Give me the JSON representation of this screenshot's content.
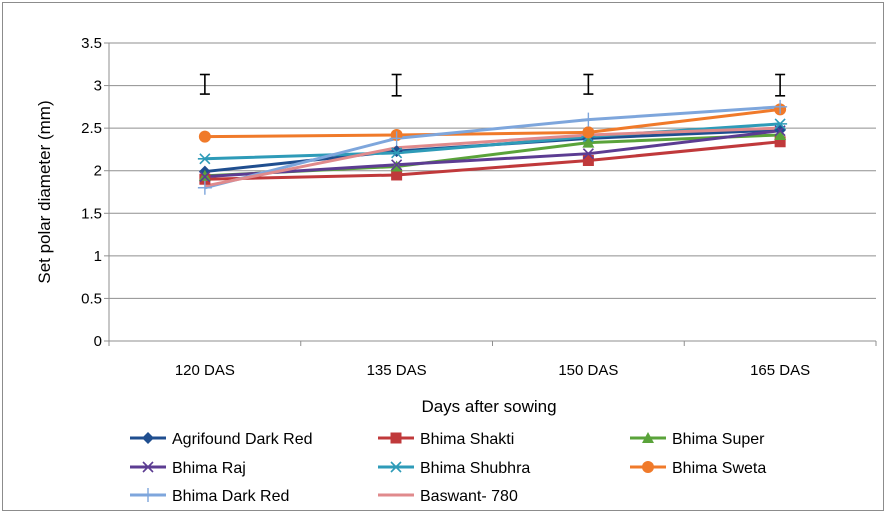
{
  "chart_data": {
    "type": "line",
    "title": "",
    "xlabel": "Days after sowing",
    "ylabel": "Set  polar diameter (mm)",
    "categories": [
      "120 DAS",
      "135 DAS",
      "150 DAS",
      "165 DAS"
    ],
    "ylim": [
      0,
      3.5
    ],
    "yticks": [
      "0",
      "0.5",
      "1",
      "1.5",
      "2",
      "2.5",
      "3",
      "3.5"
    ],
    "grid": true,
    "legend_position": "bottom",
    "series": [
      {
        "name": "Agrifound Dark Red",
        "values": [
          1.99,
          2.23,
          2.38,
          2.48
        ],
        "color": "#1f4e8f",
        "marker": "diamond"
      },
      {
        "name": "Bhima Shakti",
        "values": [
          1.9,
          1.95,
          2.12,
          2.34
        ],
        "color": "#c0393b",
        "marker": "square"
      },
      {
        "name": "Bhima Super",
        "values": [
          1.94,
          2.05,
          2.33,
          2.42
        ],
        "color": "#5aa33a",
        "marker": "triangle"
      },
      {
        "name": "Bhima Raj",
        "values": [
          1.93,
          2.07,
          2.2,
          2.47
        ],
        "color": "#5c3c92",
        "marker": "x"
      },
      {
        "name": "Bhima Shubhra",
        "values": [
          2.14,
          2.21,
          2.4,
          2.55
        ],
        "color": "#2e9bb8",
        "marker": "star"
      },
      {
        "name": "Bhima Sweta",
        "values": [
          2.4,
          2.42,
          2.45,
          2.72
        ],
        "color": "#f07a2a",
        "marker": "circle"
      },
      {
        "name": "Bhima Dark Red",
        "values": [
          1.8,
          2.38,
          2.6,
          2.75
        ],
        "color": "#7ea6dc",
        "marker": "plus"
      },
      {
        "name": "Baswant- 780",
        "values": [
          1.82,
          2.27,
          2.42,
          2.5
        ],
        "color": "#e08a8c",
        "marker": "none"
      }
    ],
    "error_bars": [
      {
        "category": "120 DAS",
        "low": 2.9,
        "high": 3.13
      },
      {
        "category": "135 DAS",
        "low": 2.88,
        "high": 3.13
      },
      {
        "category": "150 DAS",
        "low": 2.9,
        "high": 3.13
      },
      {
        "category": "165 DAS",
        "low": 2.88,
        "high": 3.13
      }
    ]
  }
}
